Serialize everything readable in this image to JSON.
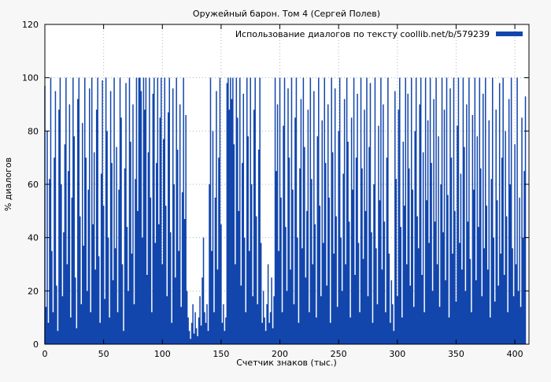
{
  "chart_data": {
    "type": "bar",
    "title": "Оружейный барон. Том 4 (Сергей Полев)",
    "xlabel": "Счетчик знаков (тыс.)",
    "ylabel": "% диалогов",
    "legend": "Использование диалогов по тексту coollib.net/b/579239",
    "legend_position": "top-right",
    "grid": true,
    "xlim": [
      0,
      412
    ],
    "ylim": [
      0,
      120
    ],
    "xticks": [
      0,
      50,
      100,
      150,
      200,
      250,
      300,
      350,
      400
    ],
    "yticks": [
      0,
      20,
      40,
      60,
      80,
      100,
      120
    ],
    "bar_color": "#1246ad",
    "colors": {
      "outer_background": "#f7f7f7",
      "plot_background": "#ffffff",
      "grid": "#b4b4b4",
      "axis": "#000000"
    },
    "x_start": 0,
    "x_step": 1,
    "values": [
      97,
      14,
      80,
      8,
      62,
      100,
      35,
      12,
      70,
      95,
      22,
      5,
      88,
      100,
      60,
      18,
      42,
      75,
      100,
      30,
      65,
      90,
      10,
      55,
      100,
      78,
      25,
      6,
      92,
      100,
      48,
      15,
      83,
      37,
      100,
      70,
      20,
      58,
      96,
      12,
      100,
      45,
      72,
      28,
      88,
      100,
      33,
      8,
      64,
      99,
      52,
      17,
      100,
      80,
      40,
      10,
      95,
      68,
      24,
      100,
      36,
      74,
      12,
      58,
      100,
      85,
      30,
      5,
      66,
      98,
      44,
      20,
      100,
      76,
      34,
      90,
      15,
      62,
      100,
      50,
      100,
      100,
      95,
      40,
      100,
      88,
      100,
      26,
      72,
      100,
      55,
      12,
      94,
      100,
      38,
      68,
      100,
      45,
      85,
      100,
      30,
      77,
      100,
      52,
      18,
      87,
      100,
      42,
      8,
      96,
      60,
      25,
      100,
      73,
      35,
      90,
      14,
      57,
      100,
      47,
      86,
      20,
      10,
      5,
      2,
      8,
      15,
      4,
      12,
      6,
      3,
      10,
      18,
      7,
      25,
      40,
      12,
      8,
      15,
      5,
      60,
      100,
      35,
      80,
      12,
      55,
      95,
      28,
      70,
      100,
      45,
      8,
      15,
      5,
      10,
      98,
      100,
      88,
      100,
      92,
      100,
      75,
      30,
      100,
      85,
      50,
      100,
      22,
      68,
      94,
      40,
      12,
      100,
      78,
      35,
      100,
      60,
      18,
      88,
      100,
      48,
      15,
      73,
      100,
      38,
      8,
      20,
      10,
      5,
      15,
      30,
      8,
      12,
      25,
      6,
      18,
      100,
      65,
      90,
      35,
      100,
      55,
      12,
      82,
      100,
      44,
      20,
      96,
      70,
      28,
      100,
      58,
      15,
      85,
      100,
      40,
      8,
      66,
      92,
      36,
      100,
      74,
      25,
      50,
      88,
      12,
      100,
      62,
      30,
      95,
      45,
      10,
      78,
      100,
      52,
      18,
      84,
      38,
      100,
      68,
      22,
      90,
      55,
      8,
      100,
      72,
      34,
      96,
      48,
      14,
      80,
      100,
      40,
      20,
      64,
      92,
      30,
      100,
      76,
      46,
      10,
      85,
      58,
      100,
      26,
      70,
      94,
      38,
      12,
      100,
      66,
      32,
      88,
      50,
      100,
      18,
      74,
      98,
      42,
      8,
      60,
      100,
      36,
      15,
      82,
      54,
      100,
      28,
      90,
      46,
      12,
      70,
      100,
      34,
      8,
      24,
      15,
      5,
      95,
      62,
      18,
      88,
      100,
      44,
      10,
      76,
      52,
      100,
      30,
      94,
      66,
      22,
      100,
      58,
      14,
      80,
      100,
      48,
      36,
      90,
      100,
      26,
      72,
      12,
      100,
      54,
      84,
      38,
      100,
      68,
      20,
      92,
      46,
      100,
      30,
      78,
      14,
      60,
      100,
      42,
      88,
      24,
      100,
      56,
      10,
      96,
      70,
      34,
      100,
      50,
      16,
      82,
      100,
      38,
      64,
      28,
      100,
      74,
      20,
      90,
      46,
      100,
      32,
      12,
      86,
      58,
      100,
      24,
      78,
      44,
      100,
      66,
      18,
      94,
      36,
      100,
      52,
      28,
      84,
      10,
      62,
      100,
      40,
      16,
      88,
      54,
      22,
      98,
      34,
      70,
      100,
      26,
      80,
      48,
      12,
      92,
      60,
      100,
      36,
      18,
      75,
      30,
      100,
      20,
      55,
      14,
      85,
      40,
      65,
      93
    ]
  }
}
